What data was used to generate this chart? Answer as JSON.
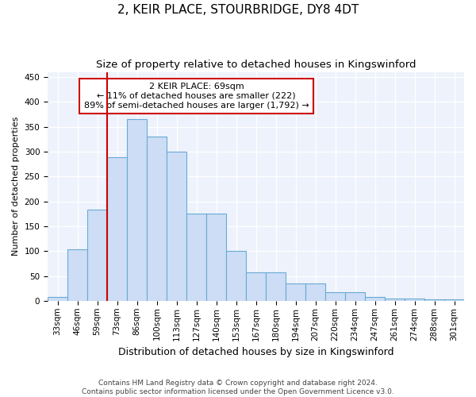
{
  "title": "2, KEIR PLACE, STOURBRIDGE, DY8 4DT",
  "subtitle": "Size of property relative to detached houses in Kingswinford",
  "xlabel": "Distribution of detached houses by size in Kingswinford",
  "ylabel": "Number of detached properties",
  "categories": [
    "33sqm",
    "46sqm",
    "59sqm",
    "73sqm",
    "86sqm",
    "100sqm",
    "113sqm",
    "127sqm",
    "140sqm",
    "153sqm",
    "167sqm",
    "180sqm",
    "194sqm",
    "207sqm",
    "220sqm",
    "234sqm",
    "247sqm",
    "261sqm",
    "274sqm",
    "288sqm",
    "301sqm"
  ],
  "values": [
    8,
    103,
    183,
    288,
    365,
    330,
    300,
    175,
    175,
    100,
    58,
    58,
    35,
    35,
    18,
    18,
    8,
    5,
    5,
    3,
    3
  ],
  "bar_color": "#ccddf5",
  "bar_edge_color": "#6aaad4",
  "vline_x": 2.5,
  "vline_color": "#cc0000",
  "annotation_text": "2 KEIR PLACE: 69sqm\n← 11% of detached houses are smaller (222)\n89% of semi-detached houses are larger (1,792) →",
  "annotation_box_color": "#ffffff",
  "annotation_box_edge": "#cc0000",
  "ylim": [
    0,
    460
  ],
  "yticks": [
    0,
    50,
    100,
    150,
    200,
    250,
    300,
    350,
    400,
    450
  ],
  "footer": "Contains HM Land Registry data © Crown copyright and database right 2024.\nContains public sector information licensed under the Open Government Licence v3.0.",
  "title_fontsize": 11,
  "subtitle_fontsize": 9.5,
  "xlabel_fontsize": 9,
  "ylabel_fontsize": 8,
  "tick_fontsize": 7.5,
  "footer_fontsize": 6.5,
  "bg_color": "#eef2fc"
}
